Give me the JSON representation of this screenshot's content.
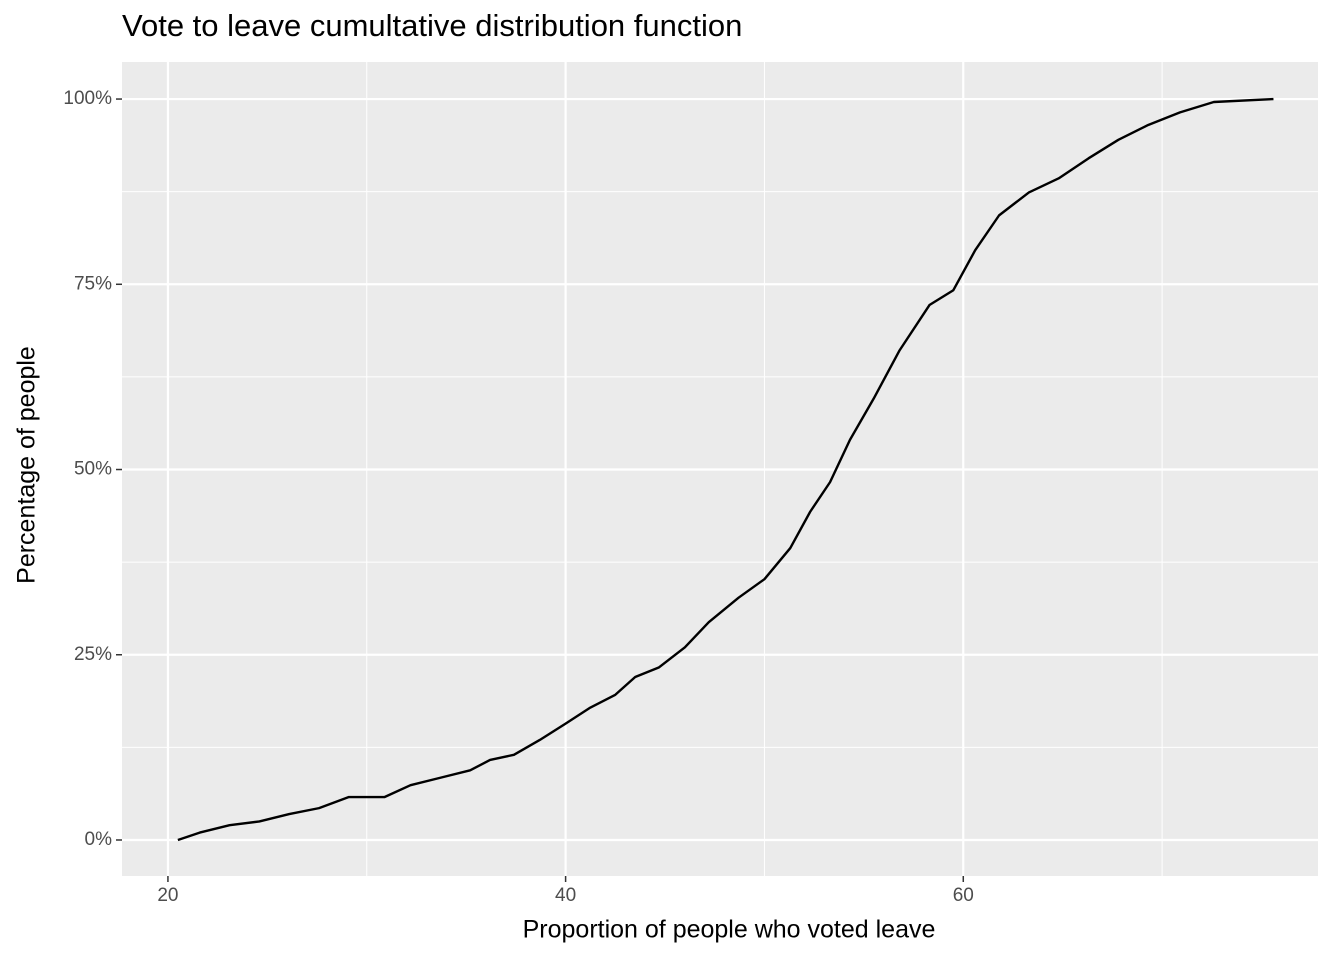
{
  "chart_data": {
    "type": "line",
    "title": "Vote to leave cumultative distribution function",
    "x_label": "Proportion of people who voted leave",
    "y_label": "Percentage of people",
    "x": [
      20.5,
      21.6,
      23.1,
      24.6,
      26.1,
      27.6,
      29.1,
      30.9,
      32.2,
      33.7,
      35.2,
      36.2,
      37.4,
      38.7,
      40.0,
      41.2,
      42.5,
      43.5,
      44.7,
      46.0,
      47.2,
      48.7,
      50.0,
      51.3,
      52.3,
      53.3,
      54.3,
      55.5,
      56.8,
      58.3,
      59.5,
      60.6,
      61.8,
      63.3,
      64.8,
      66.3,
      67.8,
      69.3,
      70.9,
      72.6,
      75.6
    ],
    "series": [
      {
        "color": "#000000",
        "values": [
          0,
          1,
          2,
          2.5,
          3.5,
          4.3,
          5.8,
          5.8,
          7.4,
          8.4,
          9.4,
          10.8,
          11.5,
          13.5,
          15.7,
          17.8,
          19.6,
          22,
          23.3,
          26,
          29.4,
          32.7,
          35.2,
          39.4,
          44.3,
          48.3,
          54,
          59.6,
          66.1,
          72.2,
          74.2,
          79.6,
          84.3,
          87.4,
          89.3,
          92,
          94.5,
          96.5,
          98.2,
          99.6,
          100
        ]
      }
    ],
    "xlim": [
      17.69,
      77.84
    ],
    "ylim": [
      -4.86,
      105
    ],
    "xticks": [
      20,
      40,
      60
    ],
    "yticks": [
      {
        "value": 0,
        "label": "0%"
      },
      {
        "value": 25,
        "label": "25%"
      },
      {
        "value": 50,
        "label": "50%"
      },
      {
        "value": 75,
        "label": "75%"
      },
      {
        "value": 100,
        "label": "100%"
      }
    ],
    "x_minor_grid": [
      30,
      50,
      70
    ],
    "y_minor_grid": [
      12.5,
      37.5,
      62.5,
      87.5
    ],
    "grid": true
  }
}
